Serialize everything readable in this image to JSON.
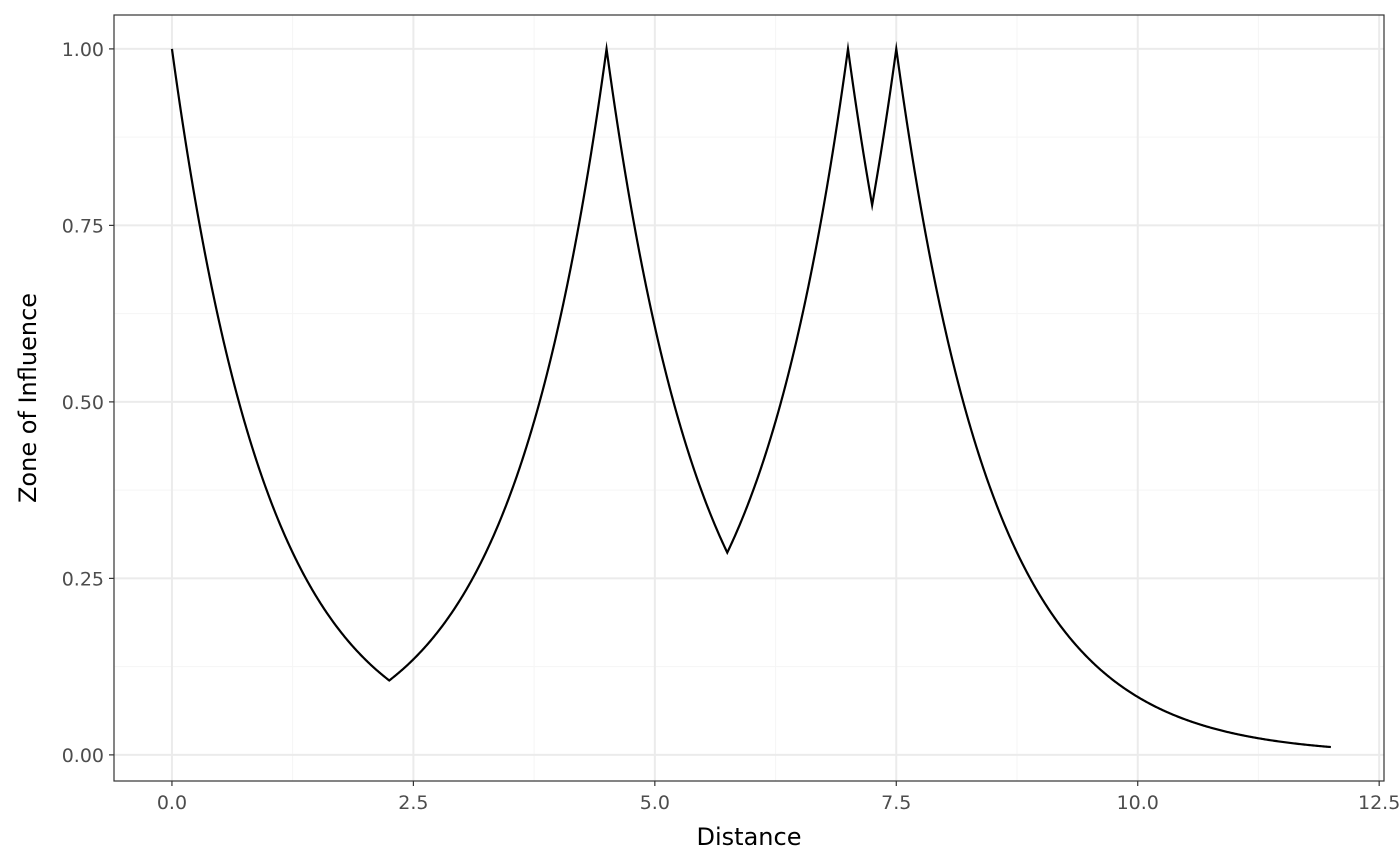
{
  "chart_data": {
    "type": "line",
    "title": "",
    "xlabel": "Distance",
    "ylabel": "Zone of Influence",
    "xlim": [
      -0.6,
      12.55
    ],
    "ylim": [
      -0.037,
      1.048
    ],
    "x_ticks": [
      0.0,
      2.5,
      5.0,
      7.5,
      10.0,
      12.5
    ],
    "x_tick_labels": [
      "0.0",
      "2.5",
      "5.0",
      "7.5",
      "10.0",
      "12.5"
    ],
    "x_minor_ticks": [
      1.25,
      3.75,
      6.25,
      8.75,
      11.25
    ],
    "y_ticks": [
      0.0,
      0.25,
      0.5,
      0.75,
      1.0
    ],
    "y_tick_labels": [
      "0.00",
      "0.25",
      "0.50",
      "0.75",
      "1.00"
    ],
    "y_minor_ticks": [
      0.125,
      0.375,
      0.625,
      0.875
    ],
    "grid": true,
    "legend": "none",
    "series": [
      {
        "name": "Zone of Influence",
        "color": "#000000",
        "peaks": [
          0.0,
          4.5,
          7.0,
          7.5
        ],
        "decay_rate": 1.0,
        "x_range": [
          0.0,
          12.0
        ],
        "points": [
          {
            "x": 0.0,
            "y": 1.0
          },
          {
            "x": 2.25,
            "y": 0.105
          },
          {
            "x": 4.5,
            "y": 1.0
          },
          {
            "x": 5.75,
            "y": 0.287
          },
          {
            "x": 7.0,
            "y": 1.0
          },
          {
            "x": 7.25,
            "y": 0.779
          },
          {
            "x": 7.5,
            "y": 1.0
          },
          {
            "x": 10.0,
            "y": 0.082
          },
          {
            "x": 12.0,
            "y": 0.011
          }
        ]
      }
    ]
  },
  "colors": {
    "background": "#ffffff",
    "panel_border": "#333333",
    "grid_major": "#ebebeb",
    "grid_minor": "#f5f5f5",
    "tick_label": "#4d4d4d",
    "axis_title": "#000000",
    "line": "#000000"
  }
}
